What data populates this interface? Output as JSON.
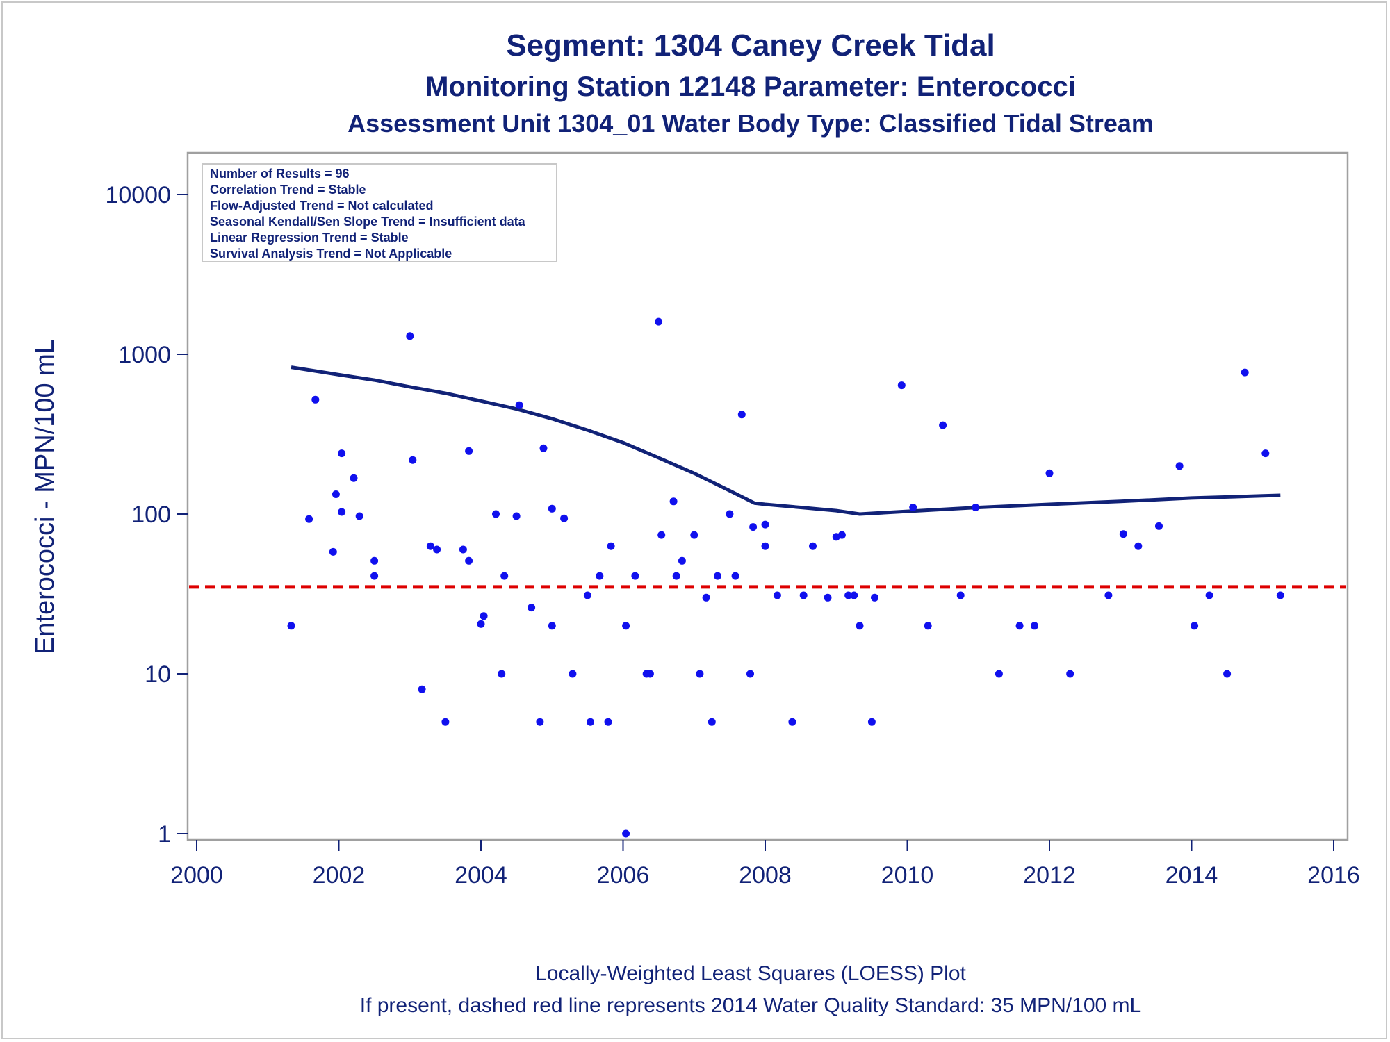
{
  "titles": {
    "line1": "Segment: 1304  Caney Creek Tidal",
    "line2": "Monitoring Station 12148 Parameter: Enterococci",
    "line3": "Assessment Unit 1304_01   Water Body Type: Classified Tidal Stream"
  },
  "stats_box": [
    "Number of Results = 96",
    "Correlation Trend = Stable",
    "Flow-Adjusted Trend = Not calculated",
    "Seasonal Kendall/Sen Slope Trend = Insufficient data",
    "Linear Regression Trend = Stable",
    "Survival Analysis Trend = Not Applicable"
  ],
  "footnotes": {
    "line1": "Locally-Weighted Least Squares (LOESS) Plot",
    "line2": "If present, dashed red line represents 2014 Water Quality Standard: 35 MPN/100 mL"
  },
  "colors": {
    "text": "#112277",
    "points": "#1010ee",
    "loess": "#112277",
    "standard": "#dd0000",
    "frame": "#a0a0a0"
  },
  "chart_data": {
    "type": "scatter",
    "ylabel": "Enterococci - MPN/100 mL",
    "xlim": [
      2000,
      2016
    ],
    "ylim": [
      1,
      10000
    ],
    "y_scale": "log",
    "x_ticks": [
      2000,
      2002,
      2004,
      2006,
      2008,
      2010,
      2012,
      2014,
      2016
    ],
    "y_ticks": [
      1,
      10,
      100,
      1000,
      10000
    ],
    "standard_line": {
      "value": 35,
      "style": "dashed"
    },
    "grid": false,
    "points": [
      [
        2001.33,
        20
      ],
      [
        2001.58,
        93
      ],
      [
        2001.67,
        520
      ],
      [
        2001.92,
        58
      ],
      [
        2001.96,
        133
      ],
      [
        2002.04,
        240
      ],
      [
        2002.04,
        103
      ],
      [
        2002.21,
        168
      ],
      [
        2002.29,
        97
      ],
      [
        2002.5,
        51
      ],
      [
        2002.5,
        41
      ],
      [
        2002.79,
        15000
      ],
      [
        2003.0,
        1300
      ],
      [
        2003.04,
        218
      ],
      [
        2003.17,
        8
      ],
      [
        2003.29,
        63
      ],
      [
        2003.38,
        60
      ],
      [
        2003.5,
        5
      ],
      [
        2003.75,
        60
      ],
      [
        2003.83,
        51
      ],
      [
        2003.83,
        248
      ],
      [
        2004.0,
        20.5
      ],
      [
        2004.04,
        23
      ],
      [
        2004.21,
        100
      ],
      [
        2004.29,
        10
      ],
      [
        2004.33,
        41
      ],
      [
        2004.5,
        97
      ],
      [
        2004.54,
        480
      ],
      [
        2004.71,
        26
      ],
      [
        2004.83,
        5
      ],
      [
        2004.88,
        258
      ],
      [
        2005.0,
        20
      ],
      [
        2005.0,
        108
      ],
      [
        2005.17,
        94
      ],
      [
        2005.29,
        10
      ],
      [
        2005.5,
        31
      ],
      [
        2005.54,
        5
      ],
      [
        2005.67,
        41
      ],
      [
        2005.79,
        5
      ],
      [
        2005.83,
        63
      ],
      [
        2006.04,
        1
      ],
      [
        2006.04,
        20
      ],
      [
        2006.17,
        41
      ],
      [
        2006.33,
        10
      ],
      [
        2006.38,
        10
      ],
      [
        2006.5,
        1600
      ],
      [
        2006.54,
        74
      ],
      [
        2006.71,
        120
      ],
      [
        2006.75,
        41
      ],
      [
        2006.83,
        51
      ],
      [
        2007.0,
        74
      ],
      [
        2007.08,
        10
      ],
      [
        2007.17,
        30
      ],
      [
        2007.25,
        5
      ],
      [
        2007.33,
        41
      ],
      [
        2007.5,
        100
      ],
      [
        2007.58,
        41
      ],
      [
        2007.67,
        420
      ],
      [
        2007.79,
        10
      ],
      [
        2007.83,
        83
      ],
      [
        2008.0,
        63
      ],
      [
        2008.0,
        86
      ],
      [
        2008.17,
        31
      ],
      [
        2008.38,
        5
      ],
      [
        2008.54,
        31
      ],
      [
        2008.67,
        63
      ],
      [
        2008.88,
        30
      ],
      [
        2009.0,
        72
      ],
      [
        2009.08,
        74
      ],
      [
        2009.17,
        31
      ],
      [
        2009.25,
        31
      ],
      [
        2009.33,
        20
      ],
      [
        2009.5,
        5
      ],
      [
        2009.54,
        30
      ],
      [
        2009.92,
        640
      ],
      [
        2010.08,
        110
      ],
      [
        2010.29,
        20
      ],
      [
        2010.5,
        360
      ],
      [
        2010.75,
        31
      ],
      [
        2010.96,
        110
      ],
      [
        2011.29,
        10
      ],
      [
        2011.58,
        20
      ],
      [
        2011.79,
        20
      ],
      [
        2012.0,
        180
      ],
      [
        2012.29,
        10
      ],
      [
        2012.83,
        31
      ],
      [
        2013.04,
        75
      ],
      [
        2013.25,
        63
      ],
      [
        2013.54,
        84
      ],
      [
        2013.83,
        200
      ],
      [
        2014.04,
        20
      ],
      [
        2014.25,
        31
      ],
      [
        2014.5,
        10
      ],
      [
        2014.75,
        770
      ],
      [
        2015.04,
        240
      ],
      [
        2015.25,
        31
      ]
    ],
    "loess": [
      [
        2001.33,
        830
      ],
      [
        2002.0,
        745
      ],
      [
        2002.5,
        690
      ],
      [
        2003.0,
        625
      ],
      [
        2003.5,
        570
      ],
      [
        2004.0,
        510
      ],
      [
        2004.5,
        455
      ],
      [
        2005.0,
        395
      ],
      [
        2005.5,
        335
      ],
      [
        2006.0,
        280
      ],
      [
        2006.5,
        225
      ],
      [
        2007.0,
        180
      ],
      [
        2007.5,
        140
      ],
      [
        2007.85,
        117
      ],
      [
        2008.0,
        115
      ],
      [
        2008.5,
        110
      ],
      [
        2009.0,
        105
      ],
      [
        2009.33,
        100
      ],
      [
        2010.0,
        104
      ],
      [
        2011.0,
        110
      ],
      [
        2012.0,
        115
      ],
      [
        2013.0,
        120
      ],
      [
        2014.0,
        126
      ],
      [
        2015.0,
        130
      ],
      [
        2015.25,
        131
      ]
    ]
  }
}
